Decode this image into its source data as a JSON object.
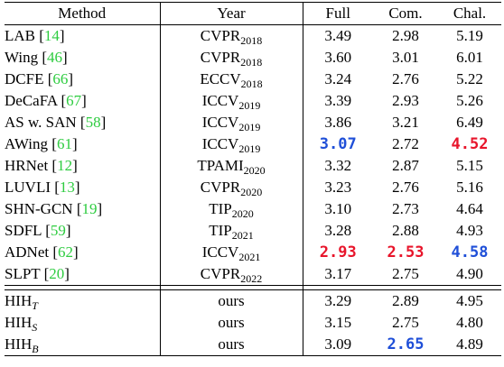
{
  "table": {
    "headers": [
      "Method",
      "Year",
      "Full",
      "Com.",
      "Chal."
    ],
    "rows": [
      {
        "name": "LAB",
        "ref": "14",
        "venue": "CVPR",
        "year": "2018",
        "full": "3.49",
        "com": "2.98",
        "chal": "5.19"
      },
      {
        "name": "Wing",
        "ref": "46",
        "venue": "CVPR",
        "year": "2018",
        "full": "3.60",
        "com": "3.01",
        "chal": "6.01"
      },
      {
        "name": "DCFE",
        "ref": "66",
        "venue": "ECCV",
        "year": "2018",
        "full": "3.24",
        "com": "2.76",
        "chal": "5.22"
      },
      {
        "name": "DeCaFA",
        "ref": "67",
        "venue": "ICCV",
        "year": "2019",
        "full": "3.39",
        "com": "2.93",
        "chal": "5.26"
      },
      {
        "name": "AS w. SAN",
        "ref": "58",
        "venue": "ICCV",
        "year": "2019",
        "full": "3.86",
        "com": "3.21",
        "chal": "6.49"
      },
      {
        "name": "AWing",
        "ref": "61",
        "venue": "ICCV",
        "year": "2019",
        "full": "3.07",
        "com": "2.72",
        "chal": "4.52"
      },
      {
        "name": "HRNet",
        "ref": "12",
        "venue": "TPAMI",
        "year": "2020",
        "full": "3.32",
        "com": "2.87",
        "chal": "5.15"
      },
      {
        "name": "LUVLI",
        "ref": "13",
        "venue": "CVPR",
        "year": "2020",
        "full": "3.23",
        "com": "2.76",
        "chal": "5.16"
      },
      {
        "name": "SHN-GCN",
        "ref": "19",
        "venue": "TIP",
        "year": "2020",
        "full": "3.10",
        "com": "2.73",
        "chal": "4.64"
      },
      {
        "name": "SDFL",
        "ref": "59",
        "venue": "TIP",
        "year": "2021",
        "full": "3.28",
        "com": "2.88",
        "chal": "4.93"
      },
      {
        "name": "ADNet",
        "ref": "62",
        "venue": "ICCV",
        "year": "2021",
        "full": "2.93",
        "com": "2.53",
        "chal": "4.58"
      },
      {
        "name": "SLPT",
        "ref": "20",
        "venue": "CVPR",
        "year": "2022",
        "full": "3.17",
        "com": "2.75",
        "chal": "4.90"
      }
    ],
    "ours": [
      {
        "name": "HIH",
        "sub": "T",
        "year": "ours",
        "full": "3.29",
        "com": "2.89",
        "chal": "4.95"
      },
      {
        "name": "HIH",
        "sub": "S",
        "year": "ours",
        "full": "3.15",
        "com": "2.75",
        "chal": "4.80"
      },
      {
        "name": "HIH",
        "sub": "B",
        "year": "ours",
        "full": "3.09",
        "com": "2.65",
        "chal": "4.89"
      }
    ]
  },
  "colors": {
    "best": "#e8152b",
    "second": "#1f4fd8",
    "citation": "#2ecc40"
  }
}
